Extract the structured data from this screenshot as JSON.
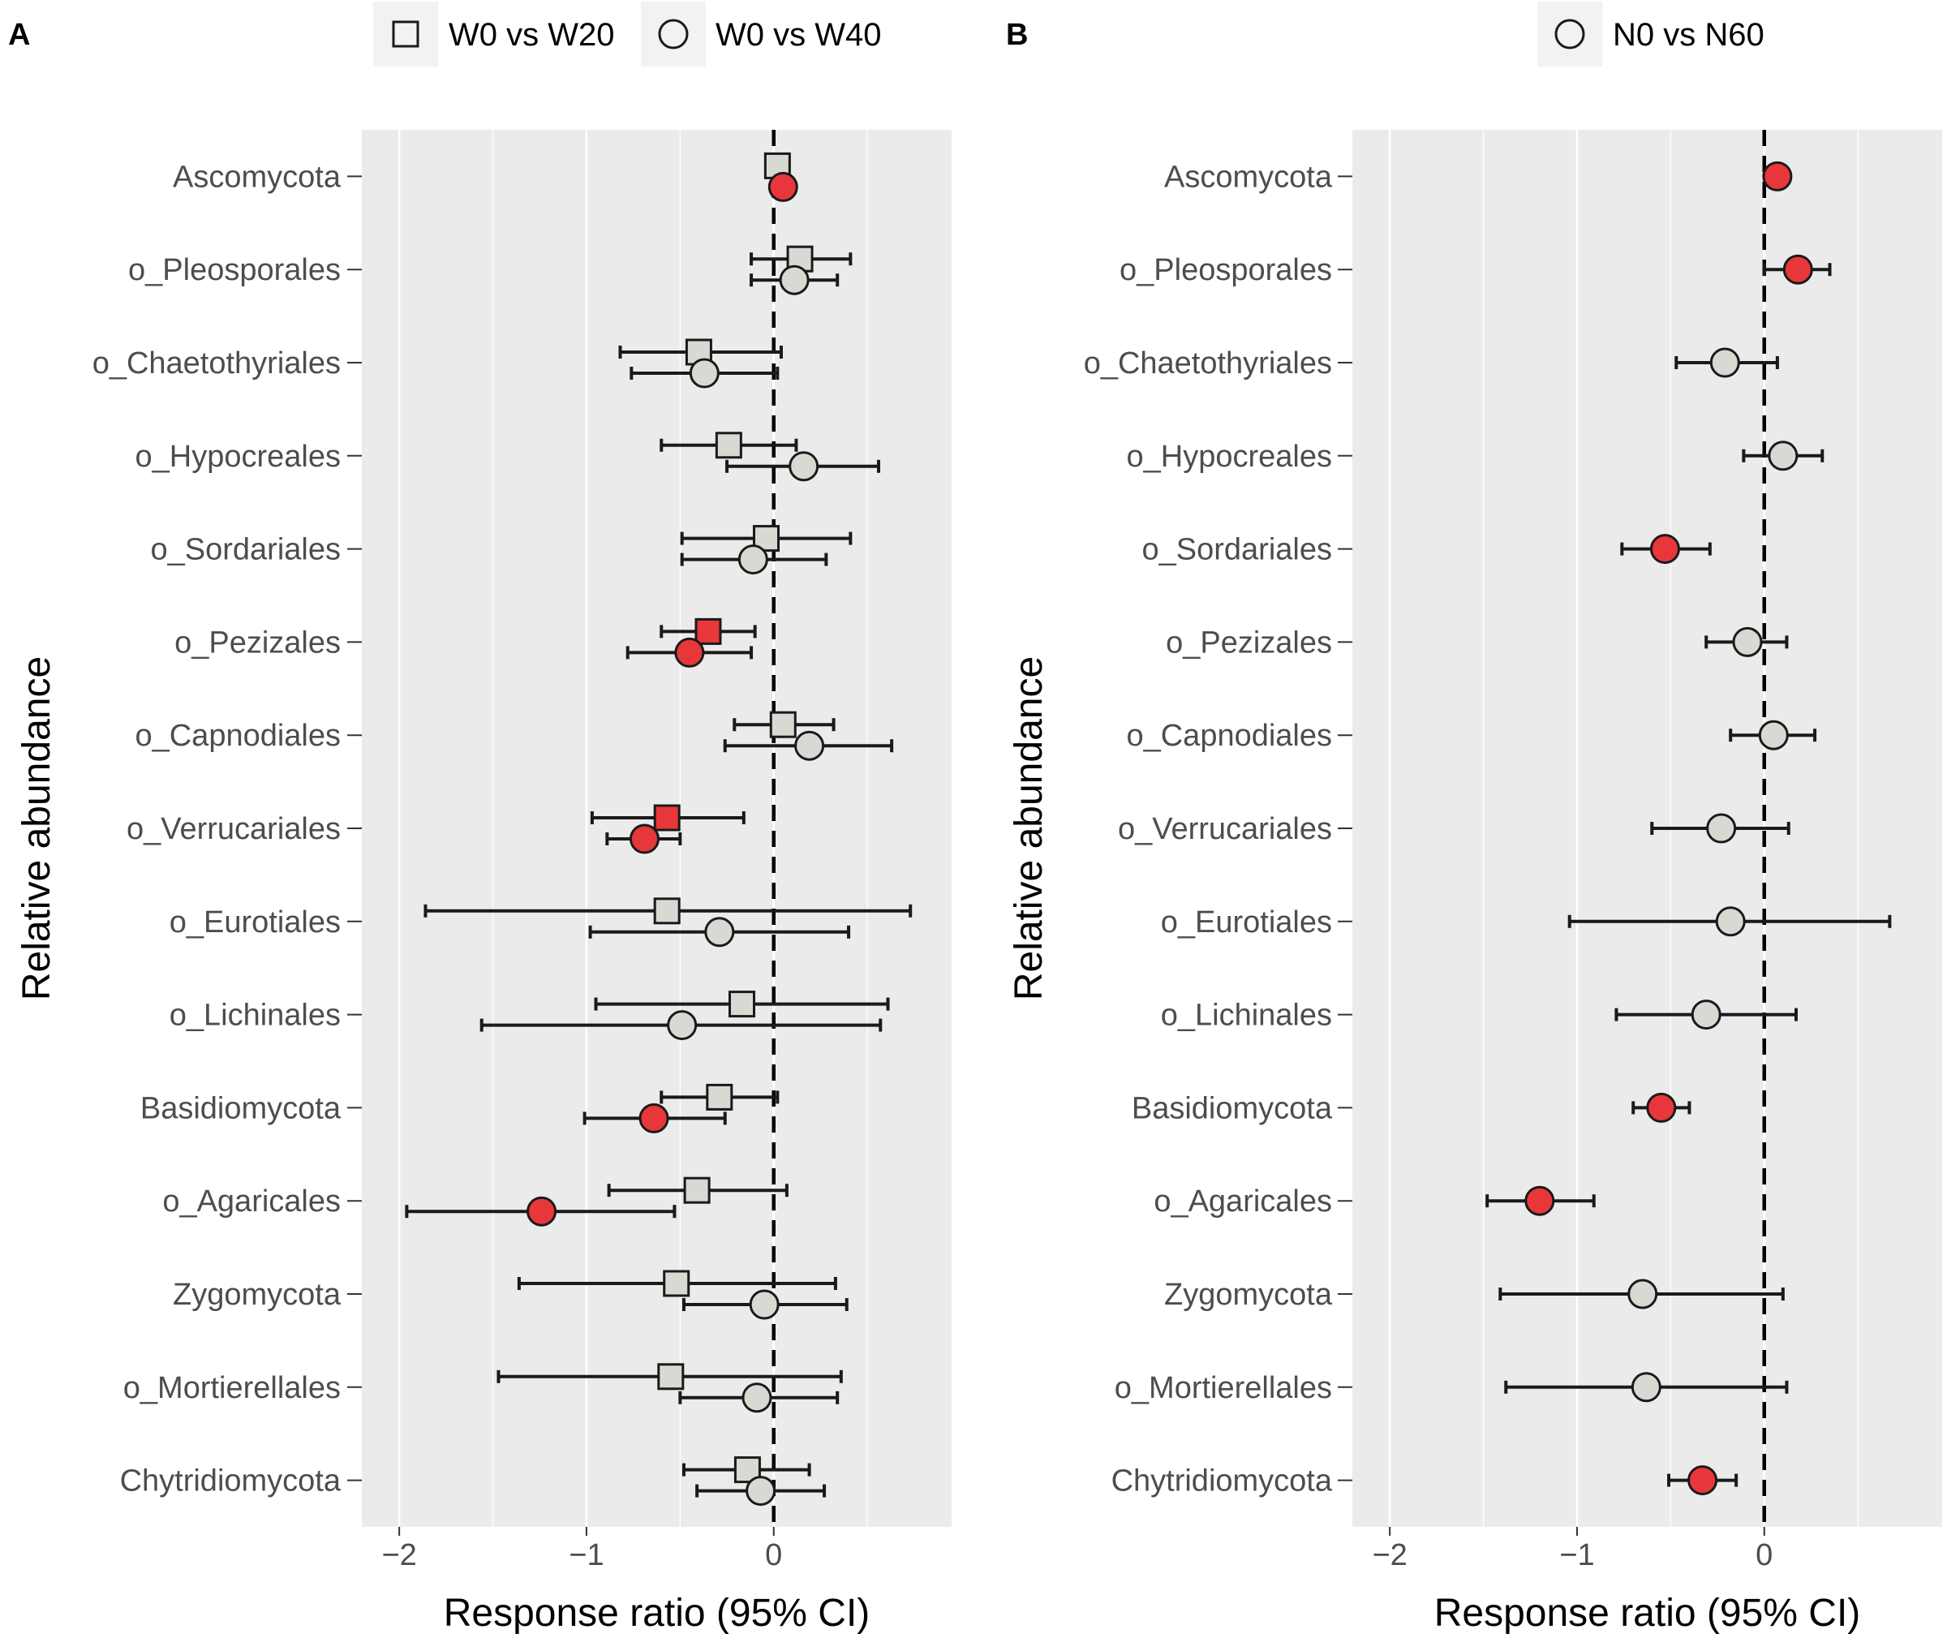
{
  "chart_data": [
    {
      "type": "forest",
      "panel": "A",
      "xlabel": "Response ratio (95% CI)",
      "ylabel": "Relative abundance",
      "xlim": [
        -2.2,
        0.95
      ],
      "xticks": [
        -2,
        -1,
        0
      ],
      "xtick_labels": [
        "−2",
        "−1",
        "0"
      ],
      "reference_line": 0,
      "categories": [
        "Ascomycota",
        "o_Pleosporales",
        "o_Chaetothyriales",
        "o_Hypocreales",
        "o_Sordariales",
        "o_Pezizales",
        "o_Capnodiales",
        "o_Verrucariales",
        "o_Eurotiales",
        "o_Lichinales",
        "Basidiomycota",
        "o_Agaricales",
        "Zygomycota",
        "o_Mortierellales",
        "Chytridiomycota"
      ],
      "legend": [
        {
          "shape": "square",
          "label": "W0 vs W20"
        },
        {
          "shape": "circle",
          "label": "W0 vs W40"
        }
      ],
      "series": [
        {
          "name": "W0 vs W20",
          "shape": "square",
          "estimate": [
            0.02,
            0.14,
            -0.4,
            -0.24,
            -0.04,
            -0.35,
            0.05,
            -0.57,
            -0.57,
            -0.17,
            -0.29,
            -0.41,
            -0.52,
            -0.55,
            -0.14
          ],
          "ci_low": [
            null,
            -0.12,
            -0.82,
            -0.6,
            -0.49,
            -0.6,
            -0.21,
            -0.97,
            -1.86,
            -0.95,
            -0.6,
            -0.88,
            -1.36,
            -1.47,
            -0.48
          ],
          "ci_high": [
            null,
            0.41,
            0.04,
            0.12,
            0.41,
            -0.1,
            0.32,
            -0.16,
            0.73,
            0.61,
            0.02,
            0.07,
            0.33,
            0.36,
            0.19
          ],
          "significant": [
            false,
            false,
            false,
            false,
            false,
            true,
            false,
            true,
            false,
            false,
            false,
            false,
            false,
            false,
            false
          ]
        },
        {
          "name": "W0 vs W40",
          "shape": "circle",
          "estimate": [
            0.05,
            0.11,
            -0.37,
            0.16,
            -0.11,
            -0.45,
            0.19,
            -0.69,
            -0.29,
            -0.49,
            -0.64,
            -1.24,
            -0.05,
            -0.09,
            -0.07
          ],
          "ci_low": [
            null,
            -0.12,
            -0.76,
            -0.25,
            -0.49,
            -0.78,
            -0.26,
            -0.89,
            -0.98,
            -1.56,
            -1.01,
            -1.96,
            -0.48,
            -0.5,
            -0.41
          ],
          "ci_high": [
            null,
            0.34,
            0.02,
            0.56,
            0.28,
            -0.12,
            0.63,
            -0.5,
            0.4,
            0.57,
            -0.26,
            -0.53,
            0.39,
            0.34,
            0.27
          ],
          "significant": [
            true,
            false,
            false,
            false,
            false,
            true,
            false,
            true,
            false,
            false,
            true,
            true,
            false,
            false,
            false
          ]
        }
      ]
    },
    {
      "type": "forest",
      "panel": "B",
      "xlabel": "Response ratio (95% CI)",
      "ylabel": "Relative abundance",
      "xlim": [
        -2.2,
        0.95
      ],
      "xticks": [
        -2,
        -1,
        0
      ],
      "xtick_labels": [
        "−2",
        "−1",
        "0"
      ],
      "reference_line": 0,
      "categories": [
        "Ascomycota",
        "o_Pleosporales",
        "o_Chaetothyriales",
        "o_Hypocreales",
        "o_Sordariales",
        "o_Pezizales",
        "o_Capnodiales",
        "o_Verrucariales",
        "o_Eurotiales",
        "o_Lichinales",
        "Basidiomycota",
        "o_Agaricales",
        "Zygomycota",
        "o_Mortierellales",
        "Chytridiomycota"
      ],
      "legend": [
        {
          "shape": "circle",
          "label": "N0 vs N60"
        }
      ],
      "series": [
        {
          "name": "N0 vs N60",
          "shape": "circle",
          "estimate": [
            0.07,
            0.18,
            -0.21,
            0.1,
            -0.53,
            -0.09,
            0.05,
            -0.23,
            -0.18,
            -0.31,
            -0.55,
            -1.2,
            -0.65,
            -0.63,
            -0.33
          ],
          "ci_low": [
            null,
            0.0,
            -0.47,
            -0.11,
            -0.76,
            -0.31,
            -0.18,
            -0.6,
            -1.04,
            -0.79,
            -0.7,
            -1.48,
            -1.41,
            -1.38,
            -0.51
          ],
          "ci_high": [
            null,
            0.35,
            0.07,
            0.31,
            -0.29,
            0.12,
            0.27,
            0.13,
            0.67,
            0.17,
            -0.4,
            -0.91,
            0.1,
            0.12,
            -0.15
          ],
          "significant": [
            true,
            true,
            false,
            false,
            true,
            false,
            false,
            false,
            false,
            false,
            true,
            true,
            false,
            false,
            true
          ]
        }
      ]
    }
  ],
  "colors": {
    "panel_bg": "#ebebeb",
    "grid": "#ffffff",
    "significant_fill": "#e8373a",
    "nonsignificant_fill": "#d9d9d3",
    "stroke": "#1a1a1a",
    "legend_key_bg": "#f2f2f2"
  }
}
